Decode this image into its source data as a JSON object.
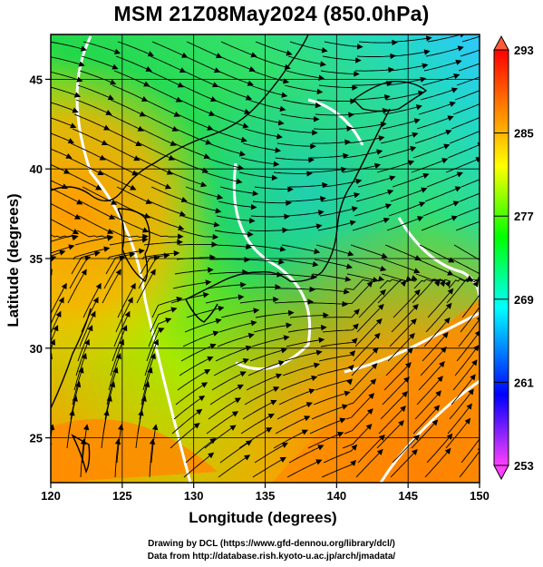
{
  "title": "MSM 21Z08May2024 (850.0hPa)",
  "footer": {
    "line1": "Drawing by DCL (https://www.gfd-dennou.org/library/dcl/)",
    "line2": "Data from http://database.rish.kyoto-u.ac.jp/arch/jmadata/"
  },
  "map": {
    "xlabel": "Longitude (degrees)",
    "ylabel": "Latitude  (degrees)",
    "xlim": [
      120,
      150
    ],
    "ylim": [
      22.5,
      47.5
    ],
    "xticks": [
      "120",
      "125",
      "130",
      "135",
      "140",
      "145",
      "150"
    ],
    "yticks": [
      "25",
      "30",
      "35",
      "40",
      "45"
    ],
    "grid": true,
    "fill": "temperature (shaded)",
    "overlay": [
      "streamlines",
      "coastlines",
      "white contours"
    ]
  },
  "colorbar": {
    "ticks": [
      "253",
      "261",
      "269",
      "277",
      "285",
      "293"
    ],
    "range": [
      253,
      293
    ],
    "colormap": [
      "#ff40ff",
      "#0000ff",
      "#00ffff",
      "#00ff00",
      "#ffff00",
      "#ff8000",
      "#ff0000"
    ]
  }
}
